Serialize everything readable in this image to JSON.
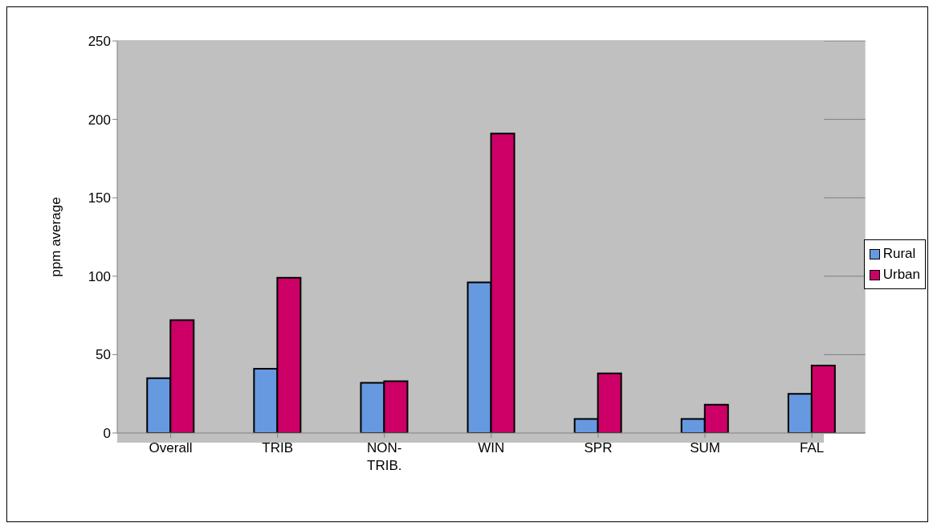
{
  "chart_data": {
    "type": "bar",
    "ylabel": "ppm average",
    "categories": [
      "Overall",
      "TRIB",
      "NON-TRIB.",
      "WIN",
      "SPR",
      "SUM",
      "FAL"
    ],
    "series": [
      {
        "name": "Rural",
        "color": "#6699e0",
        "values": [
          35,
          41,
          32,
          96,
          9,
          9,
          25
        ]
      },
      {
        "name": "Urban",
        "color": "#cc0066",
        "values": [
          72,
          99,
          33,
          191,
          38,
          18,
          43
        ]
      }
    ],
    "ylim": [
      0,
      250
    ],
    "yticks": [
      0,
      50,
      100,
      150,
      200,
      250
    ],
    "grid": "y",
    "legend": "right"
  }
}
